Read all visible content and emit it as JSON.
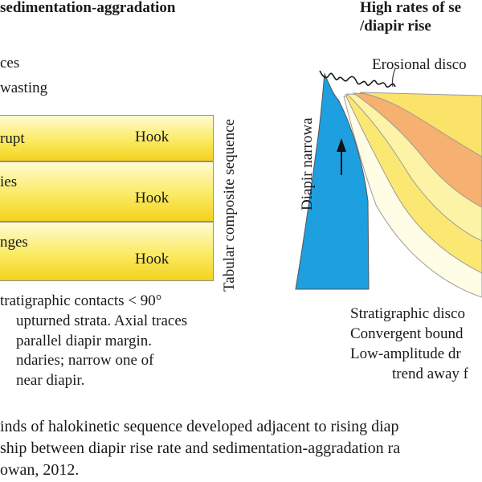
{
  "left_panel": {
    "title": "sedimentation-aggradation",
    "legend_lines": [
      "ces",
      "wasting"
    ],
    "bands": [
      {
        "left_text": "rupt",
        "right_text": "Hook"
      },
      {
        "left_text": "ies",
        "right_text": "Hook"
      },
      {
        "left_text": "nges",
        "right_text": "Hook"
      }
    ],
    "vertical_label": "Tabular composite sequence",
    "description_lines": [
      "tratigraphic contacts < 90°",
      "upturned strata. Axial traces",
      "parallel diapir margin.",
      "ndaries; narrow one of",
      "near diapir."
    ]
  },
  "right_panel": {
    "title_line1": "High rates of se",
    "title_line2": "/diapir rise",
    "erosional_label": "Erosional disco",
    "diapir_label": "Diapir narrowa",
    "description_lines": [
      "Stratigraphic disco",
      "Convergent bound",
      "Low-amplitude dr",
      "trend away f"
    ]
  },
  "caption_lines": [
    "inds of halokinetic sequence developed adjacent to rising diap",
    "ship between diapir rise rate and sedimentation-aggradation ra",
    "owan, 2012."
  ],
  "colors": {
    "diapir": "#1e9fe0",
    "band_top": "#fffbd2",
    "band_bottom": "#f4d21c",
    "wedge_orange": "#f6b070",
    "wedge_yellow": "#fbe873"
  }
}
